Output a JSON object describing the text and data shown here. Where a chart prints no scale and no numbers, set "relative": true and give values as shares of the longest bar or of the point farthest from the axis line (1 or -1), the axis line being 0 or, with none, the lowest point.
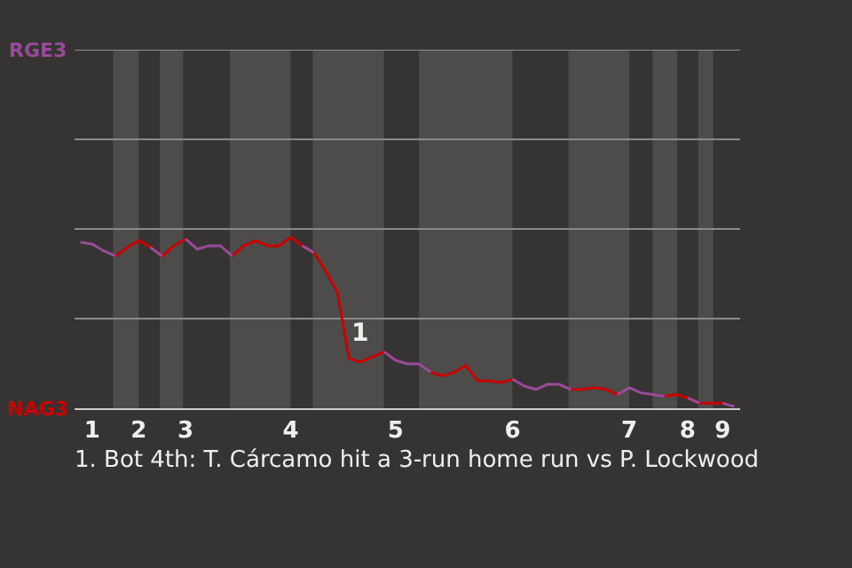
{
  "chart_data": {
    "type": "line",
    "relative": true,
    "categories": [
      null,
      "1",
      null,
      null,
      null,
      "2",
      null,
      null,
      null,
      "3",
      null,
      null,
      null,
      null,
      null,
      null,
      null,
      null,
      "4",
      null,
      null,
      null,
      null,
      null,
      null,
      null,
      null,
      "5",
      null,
      null,
      null,
      null,
      null,
      null,
      null,
      null,
      null,
      "6",
      null,
      null,
      null,
      null,
      null,
      null,
      null,
      null,
      null,
      "7",
      null,
      null,
      null,
      null,
      "8",
      null,
      null,
      "9",
      null
    ],
    "series": [
      {
        "name": "RGE3",
        "color": "#9a4a9a",
        "values": [
          0.97,
          0.96,
          0.92,
          0.89,
          null,
          null,
          0.94,
          0.89,
          null,
          0.99,
          0.93,
          0.95,
          0.95,
          0.89,
          null,
          null,
          null,
          null,
          null,
          0.95,
          0.91,
          null,
          null,
          null,
          null,
          null,
          0.33,
          0.28,
          0.26,
          0.26,
          0.21,
          null,
          null,
          null,
          null,
          null,
          null,
          0.17,
          0.13,
          0.11,
          0.14,
          0.14,
          0.11,
          null,
          null,
          null,
          0.08,
          0.12,
          0.09,
          0.08,
          0.07,
          null,
          0.06,
          0.03,
          null,
          0.03,
          0.01
        ]
      },
      {
        "name": "NAG3",
        "color": "#cc0000",
        "values": [
          null,
          null,
          null,
          0.89,
          0.94,
          0.98,
          0.94,
          0.89,
          0.95,
          0.99,
          null,
          null,
          null,
          0.89,
          0.95,
          0.98,
          0.95,
          0.95,
          1,
          0.95,
          0.91,
          0.8,
          0.68,
          0.29,
          0.27,
          0.3,
          0.33,
          null,
          null,
          null,
          0.21,
          0.19,
          0.21,
          0.25,
          0.16,
          0.16,
          0.15,
          0.17,
          null,
          null,
          null,
          null,
          0.11,
          0.11,
          0.12,
          0.11,
          0.08,
          null,
          null,
          null,
          0.07,
          0.08,
          0.06,
          0.03,
          0.03,
          0.03,
          null
        ]
      }
    ],
    "ref_lines": [
      {
        "axis": "y",
        "value": 0.524,
        "color": "#8a8a8a"
      },
      {
        "axis": "y",
        "value": 1.048,
        "color": "#8a8a8a"
      },
      {
        "axis": "y",
        "value": 1.572,
        "color": "#8a8a8a"
      },
      {
        "axis": "y",
        "value": 2.096,
        "color": "#8a8a8a"
      }
    ],
    "marker": "none",
    "line_style": "solid",
    "legend": false,
    "annotations": [
      {
        "text": "1",
        "y": 0.29
      },
      "1. Bot 4th: T. Cárcamo hit a 3-run home run vs P. Lockwood"
    ]
  }
}
